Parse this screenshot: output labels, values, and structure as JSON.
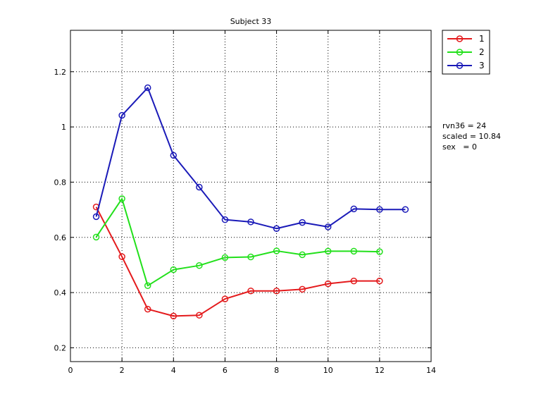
{
  "chart_data": {
    "type": "line",
    "title": "Subject 33",
    "xlabel": "",
    "ylabel": "",
    "xlim": [
      0,
      14
    ],
    "ylim": [
      0.15,
      1.35
    ],
    "xticks": [
      0,
      2,
      4,
      6,
      8,
      10,
      12,
      14
    ],
    "yticks": [
      0.2,
      0.4,
      0.6,
      0.8,
      1,
      1.2
    ],
    "xtick_labels": [
      "0",
      "2",
      "4",
      "6",
      "8",
      "10",
      "12",
      "14"
    ],
    "ytick_labels": [
      "0.2",
      "0.4",
      "0.6",
      "0.8",
      "1",
      "1.2"
    ],
    "grid": true,
    "legend_position": "outside-top-right",
    "series": [
      {
        "name": "1",
        "color": "#e41a1c",
        "x": [
          1,
          2,
          3,
          4,
          5,
          6,
          7,
          8,
          9,
          10,
          11,
          12
        ],
        "y": [
          0.71,
          0.53,
          0.34,
          0.315,
          0.318,
          0.377,
          0.406,
          0.406,
          0.412,
          0.432,
          0.442,
          0.442
        ]
      },
      {
        "name": "2",
        "color": "#22e01b",
        "x": [
          1,
          2,
          3,
          4,
          5,
          6,
          7,
          8,
          9,
          10,
          11,
          12
        ],
        "y": [
          0.601,
          0.74,
          0.425,
          0.483,
          0.498,
          0.527,
          0.529,
          0.551,
          0.537,
          0.55,
          0.55,
          0.548
        ]
      },
      {
        "name": "3",
        "color": "#1a1ab8",
        "x": [
          1,
          2,
          3,
          4,
          5,
          6,
          7,
          8,
          9,
          10,
          11,
          12,
          13
        ],
        "y": [
          0.675,
          1.042,
          1.142,
          0.897,
          0.782,
          0.664,
          0.656,
          0.632,
          0.654,
          0.638,
          0.703,
          0.701,
          0.701
        ]
      }
    ],
    "annotations": [
      "rvn36 = 24",
      "scaled = 10.84",
      "sex   = 0"
    ]
  }
}
